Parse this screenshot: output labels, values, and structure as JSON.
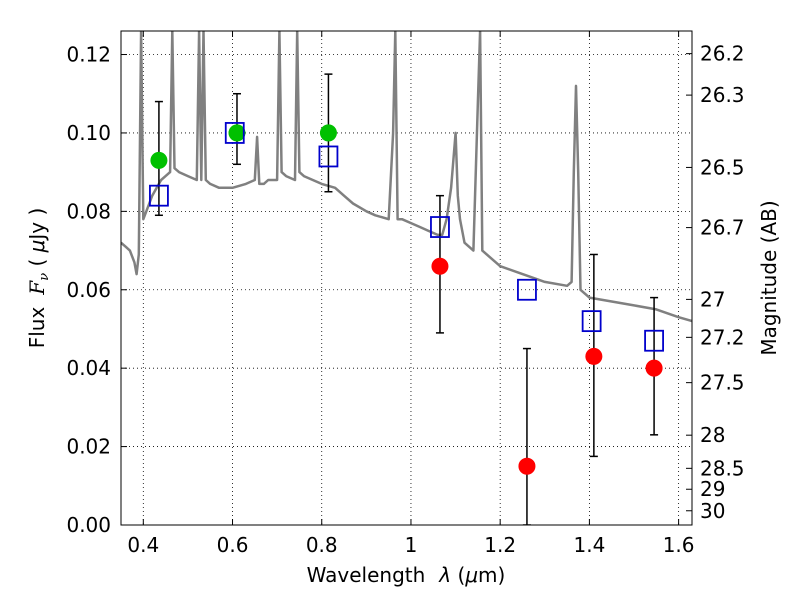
{
  "chart_data": {
    "type": "scatter",
    "title": "",
    "xlabel_prefix": "Wavelength",
    "xlabel_symbol": "λ",
    "xlabel_unit_open": " (",
    "xlabel_unit_mu": "μ",
    "xlabel_unit_close": "m)",
    "ylabel_prefix": "Flux",
    "ylabel_symbol_main": "F",
    "ylabel_symbol_sub": "ν",
    "ylabel_unit_open": " ( ",
    "ylabel_unit_mu": "μ",
    "ylabel_unit_close": "Jy )",
    "y2label": "Magnitude (AB)",
    "xlim": [
      0.35,
      1.63
    ],
    "ylim": [
      0.0,
      0.126
    ],
    "grid": true,
    "x_ticks": [
      0.4,
      0.6,
      0.8,
      1.0,
      1.2,
      1.4,
      1.6
    ],
    "x_tick_labels": [
      "0.4",
      "0.6",
      "0.8",
      "1",
      "1.2",
      "1.4",
      "1.6"
    ],
    "y_ticks": [
      0.0,
      0.02,
      0.04,
      0.06,
      0.08,
      0.1,
      0.12
    ],
    "y_tick_labels": [
      "0.00",
      "0.02",
      "0.04",
      "0.06",
      "0.08",
      "0.10",
      "0.12"
    ],
    "y2_ticks": [
      26.2,
      26.3,
      26.5,
      26.7,
      27,
      27.2,
      27.5,
      28,
      28.5,
      29,
      30
    ],
    "y2_tick_labels": [
      "26.2",
      "26.3",
      "26.5",
      "26.7",
      "27",
      "27.2",
      "27.5",
      "28",
      "28.5",
      "29",
      "30"
    ],
    "series": [
      {
        "name": "template spectrum",
        "kind": "line",
        "color": "#808080",
        "x": [
          0.35,
          0.36,
          0.37,
          0.38,
          0.385,
          0.39,
          0.395,
          0.4,
          0.41,
          0.42,
          0.43,
          0.44,
          0.45,
          0.46,
          0.465,
          0.47,
          0.48,
          0.5,
          0.52,
          0.525,
          0.53,
          0.535,
          0.54,
          0.55,
          0.57,
          0.6,
          0.63,
          0.65,
          0.655,
          0.66,
          0.67,
          0.68,
          0.7,
          0.705,
          0.71,
          0.72,
          0.74,
          0.745,
          0.75,
          0.76,
          0.78,
          0.8,
          0.83,
          0.85,
          0.87,
          0.9,
          0.92,
          0.95,
          0.96,
          0.965,
          0.97,
          0.98,
          1.0,
          1.02,
          1.04,
          1.06,
          1.07,
          1.08,
          1.09,
          1.1,
          1.105,
          1.11,
          1.12,
          1.14,
          1.15,
          1.155,
          1.16,
          1.18,
          1.2,
          1.25,
          1.3,
          1.35,
          1.36,
          1.365,
          1.37,
          1.375,
          1.38,
          1.4,
          1.45,
          1.5,
          1.55,
          1.6,
          1.63
        ],
        "y": [
          0.072,
          0.071,
          0.07,
          0.067,
          0.064,
          0.069,
          0.126,
          0.078,
          0.081,
          0.084,
          0.086,
          0.088,
          0.089,
          0.09,
          0.126,
          0.091,
          0.09,
          0.089,
          0.088,
          0.126,
          0.088,
          0.126,
          0.088,
          0.087,
          0.086,
          0.086,
          0.087,
          0.088,
          0.099,
          0.087,
          0.087,
          0.088,
          0.088,
          0.126,
          0.09,
          0.089,
          0.088,
          0.126,
          0.09,
          0.089,
          0.088,
          0.087,
          0.086,
          0.084,
          0.082,
          0.08,
          0.079,
          0.078,
          0.1,
          0.126,
          0.078,
          0.078,
          0.077,
          0.076,
          0.075,
          0.074,
          0.074,
          0.078,
          0.086,
          0.1,
          0.084,
          0.078,
          0.072,
          0.07,
          0.108,
          0.126,
          0.07,
          0.068,
          0.066,
          0.064,
          0.062,
          0.061,
          0.062,
          0.09,
          0.112,
          0.09,
          0.06,
          0.058,
          0.057,
          0.056,
          0.055,
          0.053,
          0.052
        ]
      },
      {
        "name": "green points",
        "kind": "circle",
        "color": "#00c000",
        "x": [
          0.435,
          0.61,
          0.815
        ],
        "y": [
          0.093,
          0.1,
          0.1
        ],
        "yerr_low": [
          0.079,
          0.092,
          0.085
        ],
        "yerr_high": [
          0.108,
          0.11,
          0.115
        ]
      },
      {
        "name": "red points",
        "kind": "circle",
        "color": "#ff0000",
        "x": [
          1.065,
          1.26,
          1.41,
          1.545
        ],
        "y": [
          0.066,
          0.015,
          0.043,
          0.04
        ],
        "yerr_low": [
          0.049,
          0.0,
          0.0175,
          0.023
        ],
        "yerr_high": [
          0.084,
          0.045,
          0.069,
          0.058
        ]
      },
      {
        "name": "blue model points",
        "kind": "open-square",
        "color": "#0000cc",
        "x": [
          0.435,
          0.605,
          0.815,
          1.065,
          1.26,
          1.405,
          1.545
        ],
        "y": [
          0.084,
          0.1,
          0.094,
          0.076,
          0.06,
          0.052,
          0.047
        ]
      }
    ]
  }
}
